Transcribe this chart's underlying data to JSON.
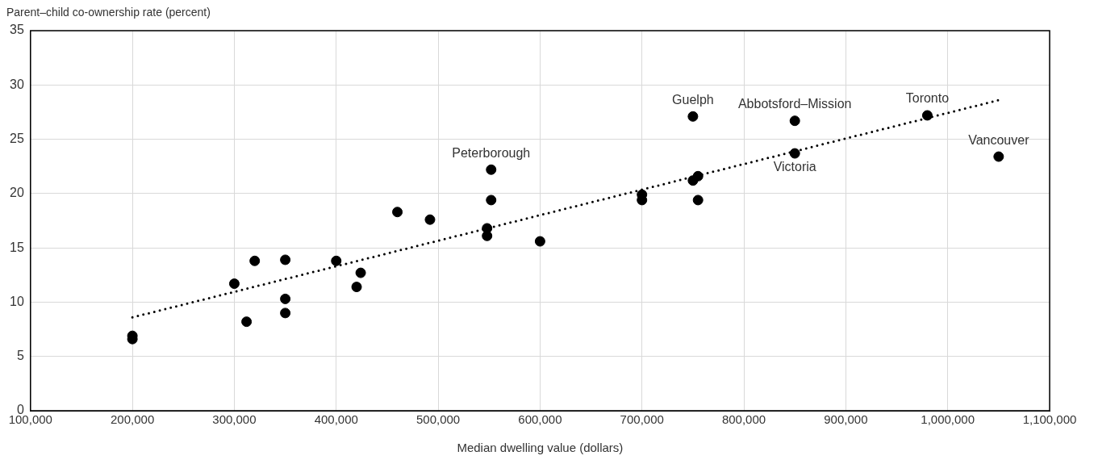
{
  "chart_data": {
    "type": "scatter",
    "xlabel": "Median dwelling value (dollars)",
    "ylabel": "Parent–child co-ownership rate (percent)",
    "x": [
      200000,
      200000,
      300000,
      320000,
      350000,
      312000,
      350000,
      350000,
      400000,
      424000,
      420000,
      460000,
      492000,
      552000,
      552000,
      548000,
      548000,
      600000,
      700000,
      700000,
      750000,
      850000,
      850000,
      980000,
      1050000,
      750000,
      755000,
      755000
    ],
    "series": [
      {
        "color": "#000000",
        "values": [
          6.9,
          6.6,
          11.7,
          13.8,
          13.9,
          8.2,
          10.3,
          9.0,
          13.8,
          12.7,
          11.4,
          18.3,
          17.6,
          22.2,
          19.4,
          16.8,
          16.1,
          15.6,
          19.9,
          19.4,
          27.1,
          26.7,
          23.7,
          27.2,
          23.4,
          21.2,
          21.6,
          19.4
        ]
      },
      {
        "type": "line",
        "color": "#000000",
        "line_style": "dotted",
        "marker": "none",
        "x": [
          200000,
          1050000
        ],
        "values": [
          8.6,
          28.6
        ]
      }
    ],
    "xlim": [
      100000,
      1100000
    ],
    "xticks": [
      {
        "value": 100000,
        "label": "100,000"
      },
      {
        "value": 200000,
        "label": "200,000"
      },
      {
        "value": 300000,
        "label": "300,000"
      },
      {
        "value": 400000,
        "label": "400,000"
      },
      {
        "value": 500000,
        "label": "500,000"
      },
      {
        "value": 600000,
        "label": "600,000"
      },
      {
        "value": 700000,
        "label": "700,000"
      },
      {
        "value": 800000,
        "label": "800,000"
      },
      {
        "value": 900000,
        "label": "900,000"
      },
      {
        "value": 1000000,
        "label": "1,000,000"
      },
      {
        "value": 1100000,
        "label": "1,100,000"
      }
    ],
    "ylim": [
      0,
      35
    ],
    "yticks": [
      0,
      5,
      10,
      15,
      20,
      25,
      30,
      35
    ],
    "grid": true,
    "legend": false,
    "marker": "circle",
    "annotations": [
      {
        "text": "Peterborough",
        "x": 552000,
        "y": 22.2
      },
      {
        "text": "Guelph",
        "x": 750000,
        "y": 27.1
      },
      {
        "text": "Abbotsford–Mission",
        "x": 850000,
        "y": 26.7
      },
      {
        "text": "Victoria",
        "x": 850000,
        "y": 23.7
      },
      {
        "text": "Toronto",
        "x": 980000,
        "y": 27.2
      },
      {
        "text": "Vancouver",
        "x": 1050000,
        "y": 23.4
      }
    ]
  }
}
